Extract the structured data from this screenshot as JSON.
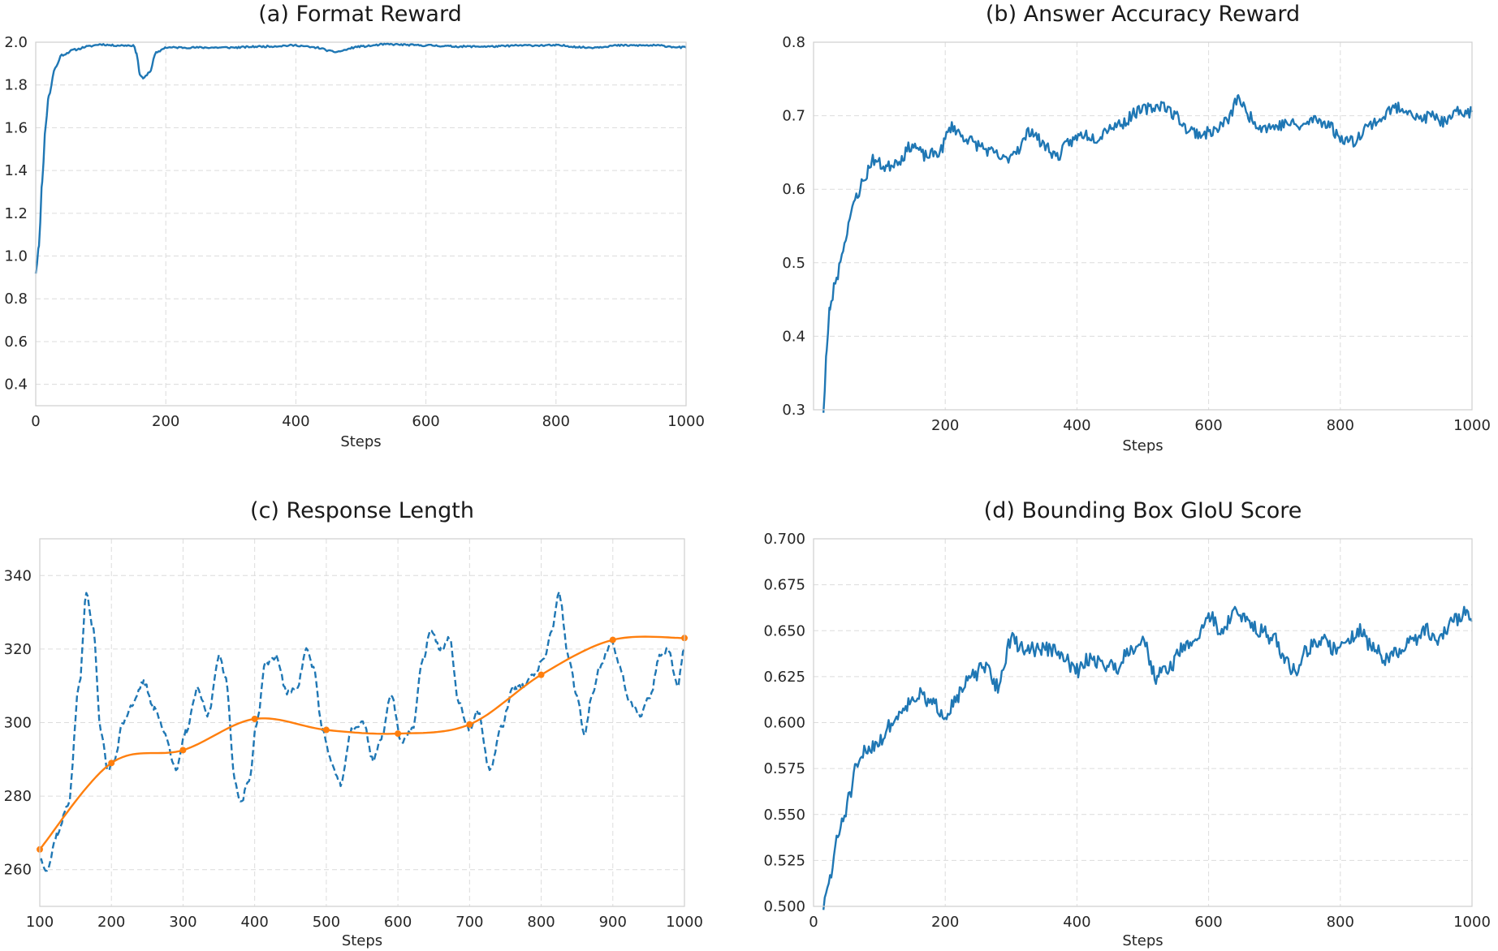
{
  "chart_data": [
    {
      "type": "line",
      "title": "(a) Format Reward",
      "xlabel": "Steps",
      "ylabel": "",
      "xlim": [
        0,
        1000
      ],
      "ylim": [
        0.3,
        2.0
      ],
      "xticks": [
        0,
        200,
        400,
        600,
        800,
        1000
      ],
      "yticks": [
        0.4,
        0.6,
        0.8,
        1.0,
        1.2,
        1.4,
        1.6,
        1.8,
        2.0
      ],
      "ytick_decimals": 1,
      "grid": true,
      "series": [
        {
          "color": "#1f77b4",
          "style": "solid",
          "noise": 0.004,
          "seed": 11,
          "points": [
            [
              0,
              0.92
            ],
            [
              5,
              1.05
            ],
            [
              10,
              1.35
            ],
            [
              15,
              1.6
            ],
            [
              20,
              1.75
            ],
            [
              30,
              1.88
            ],
            [
              40,
              1.94
            ],
            [
              60,
              1.965
            ],
            [
              80,
              1.98
            ],
            [
              100,
              1.99
            ],
            [
              120,
              1.985
            ],
            [
              150,
              1.985
            ],
            [
              155,
              1.95
            ],
            [
              160,
              1.85
            ],
            [
              165,
              1.83
            ],
            [
              175,
              1.86
            ],
            [
              185,
              1.95
            ],
            [
              200,
              1.975
            ],
            [
              250,
              1.975
            ],
            [
              300,
              1.975
            ],
            [
              350,
              1.98
            ],
            [
              400,
              1.985
            ],
            [
              430,
              1.975
            ],
            [
              460,
              1.955
            ],
            [
              500,
              1.98
            ],
            [
              540,
              1.99
            ],
            [
              600,
              1.985
            ],
            [
              650,
              1.98
            ],
            [
              700,
              1.98
            ],
            [
              750,
              1.985
            ],
            [
              800,
              1.985
            ],
            [
              850,
              1.975
            ],
            [
              900,
              1.985
            ],
            [
              950,
              1.985
            ],
            [
              1000,
              1.975
            ]
          ]
        }
      ]
    },
    {
      "type": "line",
      "title": "(b) Answer Accuracy Reward",
      "xlabel": "Steps",
      "ylabel": "",
      "xlim": [
        0,
        1000
      ],
      "ylim": [
        0.3,
        0.8
      ],
      "xticks": [
        200,
        400,
        600,
        800,
        1000
      ],
      "yticks": [
        0.3,
        0.4,
        0.5,
        0.6,
        0.7,
        0.8
      ],
      "ytick_decimals": 1,
      "grid": true,
      "series": [
        {
          "color": "#1f77b4",
          "style": "solid",
          "noise": 0.008,
          "seed": 23,
          "points": [
            [
              15,
              0.3
            ],
            [
              20,
              0.38
            ],
            [
              25,
              0.44
            ],
            [
              35,
              0.48
            ],
            [
              45,
              0.52
            ],
            [
              55,
              0.56
            ],
            [
              65,
              0.59
            ],
            [
              75,
              0.61
            ],
            [
              90,
              0.64
            ],
            [
              110,
              0.63
            ],
            [
              130,
              0.64
            ],
            [
              150,
              0.66
            ],
            [
              170,
              0.645
            ],
            [
              190,
              0.65
            ],
            [
              210,
              0.685
            ],
            [
              230,
              0.67
            ],
            [
              250,
              0.66
            ],
            [
              270,
              0.65
            ],
            [
              290,
              0.64
            ],
            [
              310,
              0.655
            ],
            [
              330,
              0.68
            ],
            [
              350,
              0.66
            ],
            [
              370,
              0.645
            ],
            [
              390,
              0.665
            ],
            [
              410,
              0.675
            ],
            [
              430,
              0.67
            ],
            [
              450,
              0.685
            ],
            [
              470,
              0.69
            ],
            [
              490,
              0.705
            ],
            [
              510,
              0.71
            ],
            [
              530,
              0.715
            ],
            [
              550,
              0.7
            ],
            [
              570,
              0.68
            ],
            [
              590,
              0.675
            ],
            [
              610,
              0.68
            ],
            [
              630,
              0.695
            ],
            [
              645,
              0.725
            ],
            [
              660,
              0.7
            ],
            [
              680,
              0.685
            ],
            [
              700,
              0.685
            ],
            [
              720,
              0.69
            ],
            [
              740,
              0.685
            ],
            [
              760,
              0.695
            ],
            [
              780,
              0.69
            ],
            [
              800,
              0.67
            ],
            [
              820,
              0.665
            ],
            [
              840,
              0.685
            ],
            [
              860,
              0.695
            ],
            [
              880,
              0.71
            ],
            [
              900,
              0.71
            ],
            [
              920,
              0.695
            ],
            [
              940,
              0.7
            ],
            [
              960,
              0.69
            ],
            [
              980,
              0.705
            ],
            [
              1000,
              0.705
            ]
          ]
        }
      ]
    },
    {
      "type": "line",
      "title": "(c) Response Length",
      "xlabel": "Steps",
      "ylabel": "",
      "xlim": [
        100,
        1000
      ],
      "ylim": [
        250,
        350
      ],
      "xticks": [
        100,
        200,
        300,
        400,
        500,
        600,
        700,
        800,
        900,
        1000
      ],
      "yticks": [
        260,
        280,
        300,
        320,
        340
      ],
      "ytick_decimals": 0,
      "grid": true,
      "series": [
        {
          "color": "#1f77b4",
          "style": "dashed",
          "noise": 0.7,
          "seed": 37,
          "points": [
            [
              100,
              263
            ],
            [
              110,
              260
            ],
            [
              125,
              270
            ],
            [
              140,
              278
            ],
            [
              155,
              310
            ],
            [
              165,
              335
            ],
            [
              175,
              325
            ],
            [
              185,
              298
            ],
            [
              195,
              287
            ],
            [
              205,
              290
            ],
            [
              215,
              300
            ],
            [
              230,
              305
            ],
            [
              245,
              311
            ],
            [
              260,
              304
            ],
            [
              275,
              297
            ],
            [
              290,
              287
            ],
            [
              305,
              298
            ],
            [
              320,
              309
            ],
            [
              335,
              302
            ],
            [
              350,
              318
            ],
            [
              360,
              312
            ],
            [
              372,
              285
            ],
            [
              380,
              278
            ],
            [
              392,
              284
            ],
            [
              403,
              300
            ],
            [
              415,
              316
            ],
            [
              430,
              318
            ],
            [
              445,
              308
            ],
            [
              460,
              310
            ],
            [
              472,
              320
            ],
            [
              482,
              315
            ],
            [
              495,
              298
            ],
            [
              505,
              290
            ],
            [
              520,
              283
            ],
            [
              535,
              298
            ],
            [
              552,
              300
            ],
            [
              565,
              290
            ],
            [
              578,
              296
            ],
            [
              590,
              308
            ],
            [
              605,
              295
            ],
            [
              620,
              298
            ],
            [
              635,
              317
            ],
            [
              645,
              325
            ],
            [
              660,
              320
            ],
            [
              672,
              323
            ],
            [
              685,
              305
            ],
            [
              700,
              298
            ],
            [
              712,
              303
            ],
            [
              728,
              287
            ],
            [
              745,
              299
            ],
            [
              760,
              309
            ],
            [
              775,
              310
            ],
            [
              790,
              313
            ],
            [
              805,
              318
            ],
            [
              815,
              325
            ],
            [
              825,
              335
            ],
            [
              838,
              318
            ],
            [
              850,
              307
            ],
            [
              860,
              297
            ],
            [
              872,
              308
            ],
            [
              882,
              315
            ],
            [
              898,
              322
            ],
            [
              910,
              315
            ],
            [
              922,
              306
            ],
            [
              938,
              302
            ],
            [
              952,
              307
            ],
            [
              965,
              318
            ],
            [
              978,
              320
            ],
            [
              990,
              310
            ],
            [
              1000,
              320
            ]
          ]
        },
        {
          "color": "#ff7f0e",
          "style": "solid",
          "smooth": true,
          "markers": [
            100,
            200,
            300,
            400,
            500,
            600,
            700,
            800,
            900,
            1000
          ],
          "points": [
            [
              100,
              265.5
            ],
            [
              200,
              289
            ],
            [
              300,
              292.5
            ],
            [
              400,
              301
            ],
            [
              500,
              298
            ],
            [
              600,
              297
            ],
            [
              700,
              299.5
            ],
            [
              800,
              313
            ],
            [
              900,
              322.5
            ],
            [
              1000,
              323
            ]
          ]
        }
      ]
    },
    {
      "type": "line",
      "title": "(d) Bounding Box GIoU Score",
      "xlabel": "Steps",
      "ylabel": "",
      "xlim": [
        0,
        1000
      ],
      "ylim": [
        0.5,
        0.7
      ],
      "xticks": [
        0,
        200,
        400,
        600,
        800,
        1000
      ],
      "yticks": [
        0.5,
        0.525,
        0.55,
        0.575,
        0.6,
        0.625,
        0.65,
        0.675,
        0.7
      ],
      "ytick_decimals": 3,
      "grid": true,
      "series": [
        {
          "color": "#1f77b4",
          "style": "solid",
          "noise": 0.004,
          "seed": 51,
          "points": [
            [
              15,
              0.5
            ],
            [
              25,
              0.515
            ],
            [
              35,
              0.535
            ],
            [
              45,
              0.548
            ],
            [
              55,
              0.56
            ],
            [
              65,
              0.575
            ],
            [
              80,
              0.585
            ],
            [
              100,
              0.59
            ],
            [
              120,
              0.6
            ],
            [
              140,
              0.61
            ],
            [
              160,
              0.615
            ],
            [
              180,
              0.61
            ],
            [
              200,
              0.605
            ],
            [
              220,
              0.615
            ],
            [
              240,
              0.625
            ],
            [
              260,
              0.63
            ],
            [
              280,
              0.62
            ],
            [
              300,
              0.645
            ],
            [
              320,
              0.64
            ],
            [
              340,
              0.64
            ],
            [
              360,
              0.64
            ],
            [
              380,
              0.635
            ],
            [
              400,
              0.628
            ],
            [
              420,
              0.635
            ],
            [
              440,
              0.632
            ],
            [
              460,
              0.63
            ],
            [
              480,
              0.64
            ],
            [
              500,
              0.645
            ],
            [
              520,
              0.625
            ],
            [
              540,
              0.63
            ],
            [
              560,
              0.64
            ],
            [
              580,
              0.645
            ],
            [
              600,
              0.658
            ],
            [
              620,
              0.65
            ],
            [
              640,
              0.66
            ],
            [
              660,
              0.655
            ],
            [
              680,
              0.65
            ],
            [
              700,
              0.645
            ],
            [
              715,
              0.635
            ],
            [
              730,
              0.628
            ],
            [
              750,
              0.64
            ],
            [
              770,
              0.645
            ],
            [
              790,
              0.64
            ],
            [
              810,
              0.645
            ],
            [
              830,
              0.65
            ],
            [
              850,
              0.64
            ],
            [
              870,
              0.635
            ],
            [
              890,
              0.638
            ],
            [
              910,
              0.645
            ],
            [
              930,
              0.65
            ],
            [
              950,
              0.645
            ],
            [
              970,
              0.655
            ],
            [
              990,
              0.66
            ],
            [
              1000,
              0.655
            ]
          ]
        }
      ]
    }
  ]
}
